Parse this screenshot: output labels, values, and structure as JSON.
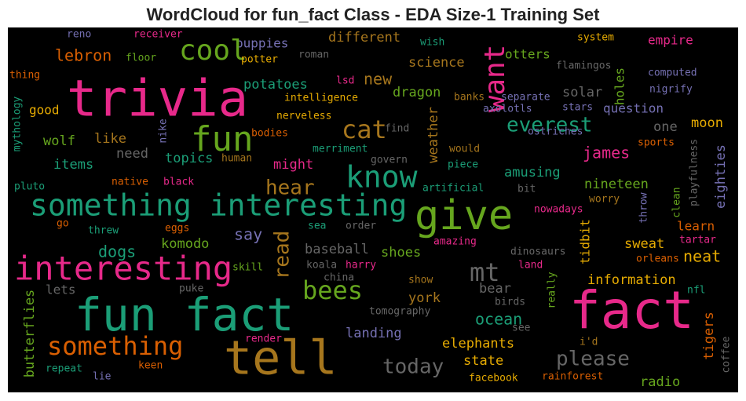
{
  "chart_data": {
    "type": "wordcloud",
    "title": "WordCloud for fun_fact Class - EDA Size-1 Training Set",
    "background": "#000000",
    "words": [
      {
        "text": "reno",
        "color": "#7570b3"
      },
      {
        "text": "receiver",
        "color": "#e7298a"
      },
      {
        "text": "wish",
        "color": "#1b9e77"
      },
      {
        "text": "system",
        "color": "#e6ab02"
      },
      {
        "text": "empire",
        "color": "#e7298a"
      },
      {
        "text": "puppies",
        "color": "#7570b3"
      },
      {
        "text": "different",
        "color": "#a6761d"
      },
      {
        "text": "cool",
        "color": "#66a61e"
      },
      {
        "text": "lebron",
        "color": "#d95f02"
      },
      {
        "text": "floor",
        "color": "#66a61e"
      },
      {
        "text": "potter",
        "color": "#e6ab02"
      },
      {
        "text": "roman",
        "color": "#666666"
      },
      {
        "text": "science",
        "color": "#a6761d"
      },
      {
        "text": "otters",
        "color": "#66a61e"
      },
      {
        "text": "flamingos",
        "color": "#666666"
      },
      {
        "text": "computed",
        "color": "#7570b3"
      },
      {
        "text": "thing",
        "color": "#d95f02"
      },
      {
        "text": "trivia",
        "color": "#e7298a"
      },
      {
        "text": "want",
        "color": "#e7298a"
      },
      {
        "text": "lsd",
        "color": "#e7298a"
      },
      {
        "text": "new",
        "color": "#a6761d"
      },
      {
        "text": "potatoes",
        "color": "#1b9e77"
      },
      {
        "text": "holes",
        "color": "#66a61e"
      },
      {
        "text": "nigrify",
        "color": "#7570b3"
      },
      {
        "text": "banks",
        "color": "#a6761d"
      },
      {
        "text": "separate",
        "color": "#7570b3"
      },
      {
        "text": "intelligence",
        "color": "#e6ab02"
      },
      {
        "text": "dragon",
        "color": "#66a61e"
      },
      {
        "text": "solar",
        "color": "#666666"
      },
      {
        "text": "mythology",
        "color": "#1b9e77"
      },
      {
        "text": "good",
        "color": "#e6ab02"
      },
      {
        "text": "cat",
        "color": "#a6761d"
      },
      {
        "text": "question",
        "color": "#7570b3"
      },
      {
        "text": "axolotls",
        "color": "#7570b3"
      },
      {
        "text": "stars",
        "color": "#7570b3"
      },
      {
        "text": "nerveless",
        "color": "#e6ab02"
      },
      {
        "text": "find",
        "color": "#666666"
      },
      {
        "text": "everest",
        "color": "#1b9e77"
      },
      {
        "text": "fun",
        "color": "#66a61e"
      },
      {
        "text": "one",
        "color": "#666666"
      },
      {
        "text": "moon",
        "color": "#e6ab02"
      },
      {
        "text": "bodies",
        "color": "#d95f02"
      },
      {
        "text": "nike",
        "color": "#7570b3"
      },
      {
        "text": "like",
        "color": "#a6761d"
      },
      {
        "text": "wolf",
        "color": "#66a61e"
      },
      {
        "text": "weather",
        "color": "#a6761d"
      },
      {
        "text": "ostriches",
        "color": "#7570b3"
      },
      {
        "text": "sports",
        "color": "#d95f02"
      },
      {
        "text": "playfulness",
        "color": "#666666"
      },
      {
        "text": "merriment",
        "color": "#1b9e77"
      },
      {
        "text": "would",
        "color": "#a6761d"
      },
      {
        "text": "need",
        "color": "#666666"
      },
      {
        "text": "topics",
        "color": "#1b9e77"
      },
      {
        "text": "human",
        "color": "#a6761d"
      },
      {
        "text": "james",
        "color": "#e7298a"
      },
      {
        "text": "items",
        "color": "#1b9e77"
      },
      {
        "text": "might",
        "color": "#e7298a"
      },
      {
        "text": "govern",
        "color": "#666666"
      },
      {
        "text": "piece",
        "color": "#1b9e77"
      },
      {
        "text": "know",
        "color": "#1b9e77"
      },
      {
        "text": "amusing",
        "color": "#1b9e77"
      },
      {
        "text": "eighties",
        "color": "#7570b3"
      },
      {
        "text": "hear",
        "color": "#a6761d"
      },
      {
        "text": "pluto",
        "color": "#1b9e77"
      },
      {
        "text": "native",
        "color": "#d95f02"
      },
      {
        "text": "black",
        "color": "#e7298a"
      },
      {
        "text": "artificial",
        "color": "#1b9e77"
      },
      {
        "text": "nineteen",
        "color": "#66a61e"
      },
      {
        "text": "bit",
        "color": "#666666"
      },
      {
        "text": "something interesting",
        "color": "#1b9e77"
      },
      {
        "text": "worry",
        "color": "#a6761d"
      },
      {
        "text": "clean",
        "color": "#66a61e"
      },
      {
        "text": "give",
        "color": "#66a61e"
      },
      {
        "text": "nowadays",
        "color": "#e7298a"
      },
      {
        "text": "throw",
        "color": "#7570b3"
      },
      {
        "text": "go",
        "color": "#d95f02"
      },
      {
        "text": "threw",
        "color": "#1b9e77"
      },
      {
        "text": "eggs",
        "color": "#d95f02"
      },
      {
        "text": "sea",
        "color": "#1b9e77"
      },
      {
        "text": "order",
        "color": "#666666"
      },
      {
        "text": "learn",
        "color": "#d95f02"
      },
      {
        "text": "tartar",
        "color": "#e7298a"
      },
      {
        "text": "read",
        "color": "#a6761d"
      },
      {
        "text": "say",
        "color": "#7570b3"
      },
      {
        "text": "amazing",
        "color": "#e7298a"
      },
      {
        "text": "sweat",
        "color": "#e6ab02"
      },
      {
        "text": "tidbit",
        "color": "#e6ab02"
      },
      {
        "text": "orleans",
        "color": "#d95f02"
      },
      {
        "text": "dogs",
        "color": "#1b9e77"
      },
      {
        "text": "komodo",
        "color": "#66a61e"
      },
      {
        "text": "baseball",
        "color": "#666666"
      },
      {
        "text": "shoes",
        "color": "#66a61e"
      },
      {
        "text": "dinosaurs",
        "color": "#666666"
      },
      {
        "text": "neat",
        "color": "#e6ab02"
      },
      {
        "text": "interesting",
        "color": "#e7298a"
      },
      {
        "text": "skill",
        "color": "#66a61e"
      },
      {
        "text": "koala",
        "color": "#666666"
      },
      {
        "text": "harry",
        "color": "#e7298a"
      },
      {
        "text": "land",
        "color": "#e7298a"
      },
      {
        "text": "mt",
        "color": "#666666"
      },
      {
        "text": "china",
        "color": "#666666"
      },
      {
        "text": "really",
        "color": "#66a61e"
      },
      {
        "text": "information",
        "color": "#e6ab02"
      },
      {
        "text": "show",
        "color": "#a6761d"
      },
      {
        "text": "bees",
        "color": "#66a61e"
      },
      {
        "text": "lets",
        "color": "#666666"
      },
      {
        "text": "puke",
        "color": "#666666"
      },
      {
        "text": "bear",
        "color": "#666666"
      },
      {
        "text": "nfl",
        "color": "#1b9e77"
      },
      {
        "text": "butterflies",
        "color": "#66a61e"
      },
      {
        "text": "york",
        "color": "#a6761d"
      },
      {
        "text": "birds",
        "color": "#666666"
      },
      {
        "text": "fun fact",
        "color": "#1b9e77"
      },
      {
        "text": "fact",
        "color": "#e7298a"
      },
      {
        "text": "tomography",
        "color": "#666666"
      },
      {
        "text": "ocean",
        "color": "#1b9e77"
      },
      {
        "text": "tigers",
        "color": "#d95f02"
      },
      {
        "text": "coffee",
        "color": "#666666"
      },
      {
        "text": "render",
        "color": "#e7298a"
      },
      {
        "text": "see",
        "color": "#666666"
      },
      {
        "text": "landing",
        "color": "#7570b3"
      },
      {
        "text": "i'd",
        "color": "#a6761d"
      },
      {
        "text": "something",
        "color": "#d95f02"
      },
      {
        "text": "elephants",
        "color": "#e6ab02"
      },
      {
        "text": "tell",
        "color": "#a6761d"
      },
      {
        "text": "please",
        "color": "#666666"
      },
      {
        "text": "state",
        "color": "#e6ab02"
      },
      {
        "text": "today",
        "color": "#666666"
      },
      {
        "text": "repeat",
        "color": "#1b9e77"
      },
      {
        "text": "keen",
        "color": "#d95f02"
      },
      {
        "text": "lie",
        "color": "#7570b3"
      },
      {
        "text": "facebook",
        "color": "#e6ab02"
      },
      {
        "text": "rainforest",
        "color": "#d95f02"
      },
      {
        "text": "radio",
        "color": "#66a61e"
      }
    ]
  }
}
